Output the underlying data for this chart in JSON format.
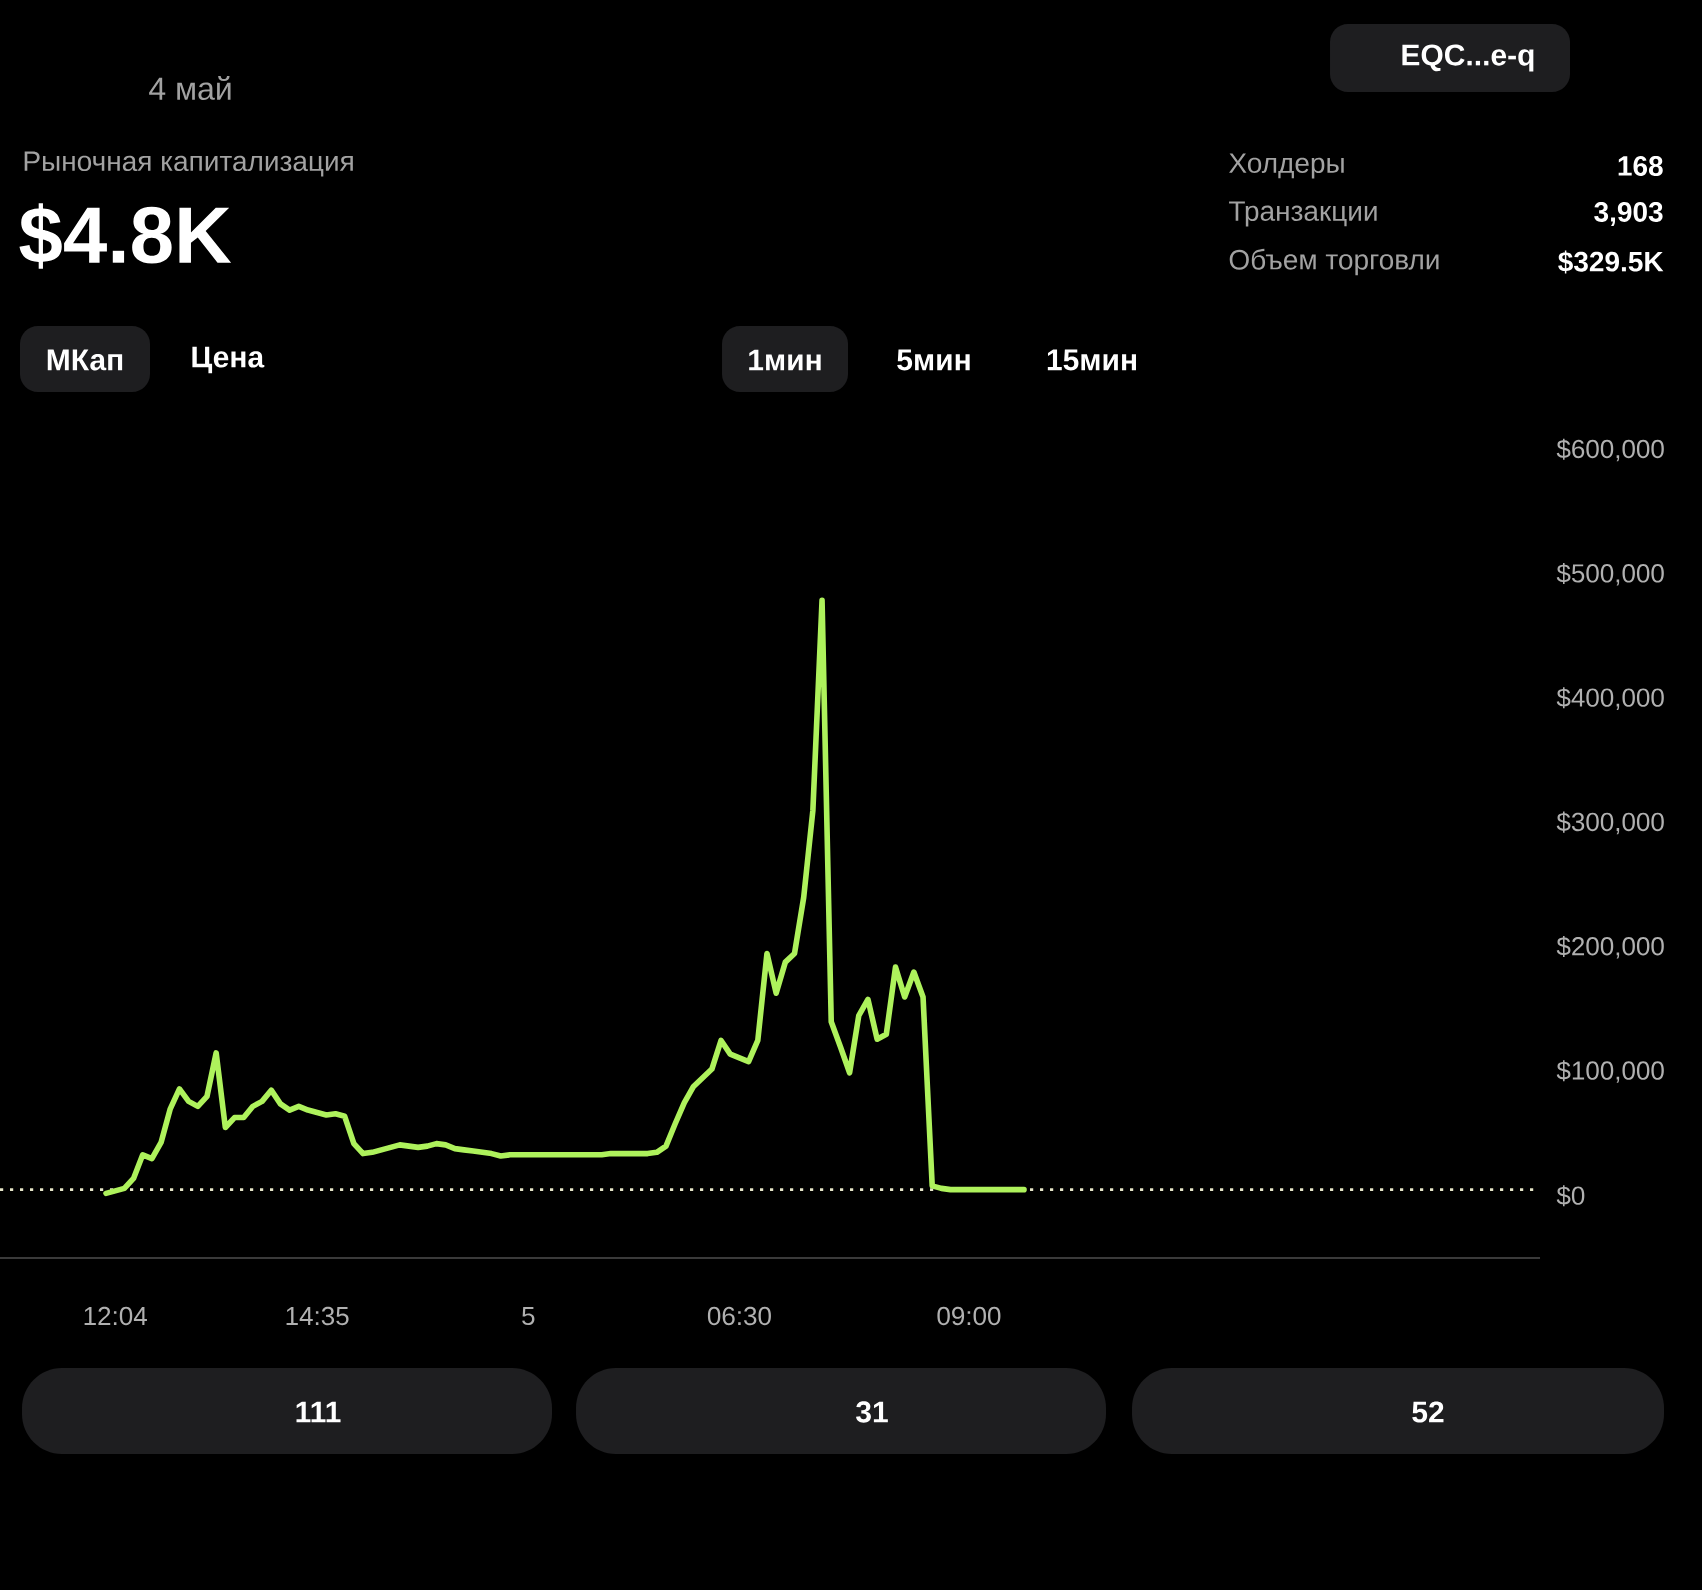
{
  "chart_data": {
    "type": "line",
    "title": "Рыночная капитализация",
    "subtitle": "$4.8K",
    "categories": [
      null,
      "12:04",
      null,
      null,
      null,
      null,
      null,
      null,
      null,
      null,
      null,
      null,
      null,
      null,
      null,
      null,
      null,
      null,
      null,
      null,
      null,
      null,
      null,
      "14:35",
      null,
      null,
      null,
      null,
      null,
      null,
      null,
      null,
      null,
      null,
      null,
      null,
      null,
      null,
      null,
      null,
      null,
      null,
      null,
      null,
      null,
      null,
      "5",
      null,
      null,
      null,
      null,
      null,
      null,
      null,
      null,
      null,
      null,
      null,
      null,
      null,
      null,
      null,
      null,
      null,
      null,
      null,
      null,
      null,
      null,
      "06:30",
      null,
      null,
      null,
      null,
      null,
      null,
      null,
      null,
      null,
      null,
      null,
      null,
      null,
      null,
      null,
      null,
      null,
      null,
      null,
      null,
      null,
      null,
      null,
      null,
      "09:00",
      null,
      null,
      null,
      null,
      null,
      null
    ],
    "values": [
      2000,
      4000,
      6000,
      14000,
      33000,
      30000,
      43000,
      70000,
      86000,
      76000,
      72000,
      80000,
      115000,
      55000,
      63000,
      63000,
      72000,
      76000,
      85000,
      74000,
      69000,
      72000,
      69000,
      67000,
      65000,
      66000,
      64000,
      42000,
      34000,
      35000,
      37000,
      39000,
      41000,
      40000,
      39000,
      40000,
      42000,
      41000,
      38000,
      37000,
      36000,
      35000,
      34000,
      32000,
      33000,
      33000,
      33000,
      33000,
      33000,
      33000,
      33000,
      33000,
      33000,
      33000,
      33000,
      34000,
      34000,
      34000,
      34000,
      34000,
      35000,
      40000,
      58000,
      75000,
      88000,
      95000,
      102000,
      125000,
      114000,
      111000,
      108000,
      125000,
      195000,
      163000,
      188000,
      195000,
      240000,
      310000,
      479000,
      140000,
      120000,
      99000,
      145000,
      158000,
      126000,
      130000,
      184000,
      160000,
      180000,
      160000,
      8000,
      6000,
      5000,
      5000,
      5000,
      5000,
      5000,
      5000,
      5000,
      5000,
      5000
    ],
    "color": "#aef25c",
    "ylim": [
      -50000,
      600000
    ],
    "yticks": [
      {
        "value": 0,
        "label": "$0"
      },
      {
        "value": 100000,
        "label": "$100,000"
      },
      {
        "value": 200000,
        "label": "$200,000"
      },
      {
        "value": 300000,
        "label": "$300,000"
      },
      {
        "value": 400000,
        "label": "$400,000"
      },
      {
        "value": 500000,
        "label": "$500,000"
      },
      {
        "value": 600000,
        "label": "$600,000"
      }
    ],
    "ref_lines": [
      {
        "axis": "y",
        "value": 5000,
        "line_style": "dotted",
        "color": "#e6e6c8"
      }
    ],
    "annotations": [
      "4 май",
      "EQC...e-q",
      "Холдеры",
      "168",
      "Транзакции",
      "3,903",
      "Объем торговли",
      "$329.5K",
      "МКап",
      "Цена",
      "1мин",
      "5мин",
      "15мин",
      "111",
      "31",
      "52"
    ]
  }
}
